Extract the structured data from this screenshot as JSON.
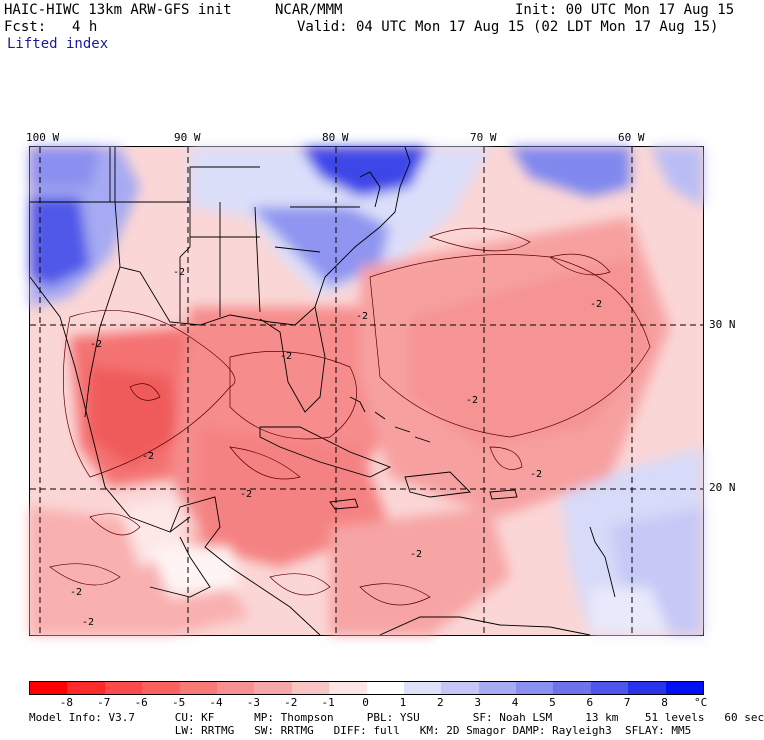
{
  "header": {
    "model": "HAIC-HIWC 13km ARW-GFS init",
    "org": "NCAR/MMM",
    "init": "Init: 00 UTC Mon 17 Aug 15",
    "fcst_label": "Fcst:",
    "fcst_value": "4 h",
    "valid": "Valid: 04 UTC Mon 17 Aug 15 (02 LDT Mon 17 Aug 15)",
    "field": "Lifted index"
  },
  "map": {
    "lon_labels": [
      "100 W",
      "90 W",
      "80 W",
      "70 W",
      "60 W"
    ],
    "lat_labels": [
      "30 N",
      "20 N"
    ],
    "contour_labels": [
      "-2",
      "-2",
      "-2",
      "-2",
      "-2",
      "-2",
      "-2",
      "-2",
      "-2",
      "-2",
      "-2",
      "-2"
    ]
  },
  "legend": {
    "ticks": [
      "-8",
      "-7",
      "-6",
      "-5",
      "-4",
      "-3",
      "-2",
      "-1",
      "0",
      "1",
      "2",
      "3",
      "4",
      "5",
      "6",
      "7",
      "8"
    ],
    "unit": "°C",
    "colors": [
      "#ff0000",
      "#ff2a2a",
      "#ff4b4b",
      "#fc6161",
      "#f97878",
      "#f79191",
      "#f6a7a7",
      "#f8c4c4",
      "#fde6e6",
      "#ffffff",
      "#dfe1fb",
      "#c3c6f7",
      "#a7abf3",
      "#8a8ff0",
      "#6d73ed",
      "#4e55eb",
      "#2a33ec",
      "#0010f2"
    ]
  },
  "footer": {
    "line1": "Model Info: V3.7      CU: KF      MP: Thompson     PBL: YSU        SF: Noah LSM     13 km    51 levels   60 sec",
    "line2": "                      LW: RRTMG   SW: RRTMG   DIFF: full   KM: 2D Smagor DAMP: Rayleigh3  SFLAY: MM5"
  }
}
